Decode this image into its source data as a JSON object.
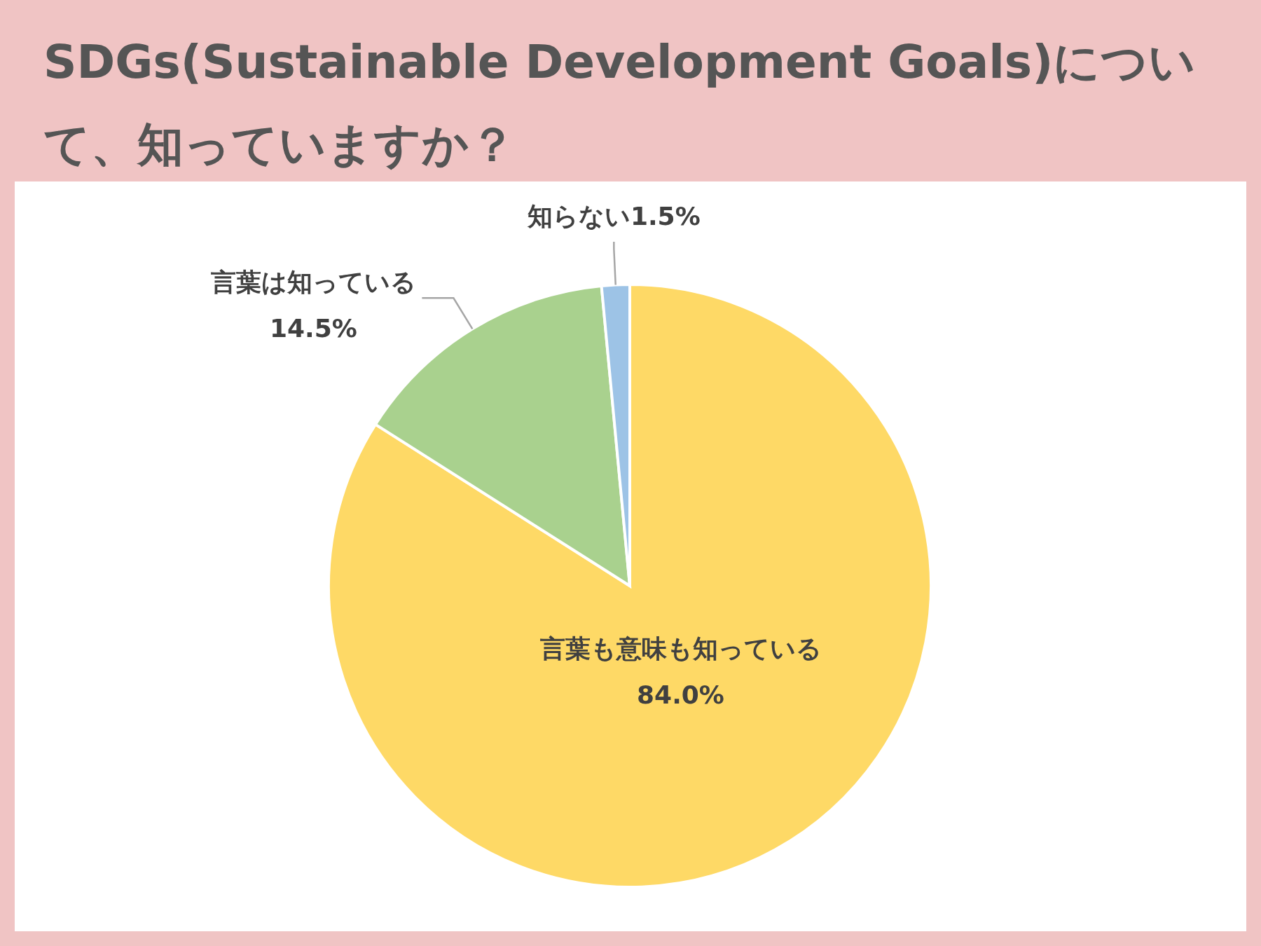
{
  "chart_data": {
    "type": "pie",
    "title": "SDGs(Sustainable Development Goals)について、知っていますか？",
    "categories": [
      "言葉も意味も知っている",
      "言葉は知っている",
      "知らない"
    ],
    "values": [
      84.0,
      14.5,
      1.5
    ],
    "colors": [
      "#fed966",
      "#a9d18e",
      "#9dc3e6"
    ],
    "value_labels": [
      "84.0%",
      "14.5%",
      "1.5%"
    ]
  }
}
